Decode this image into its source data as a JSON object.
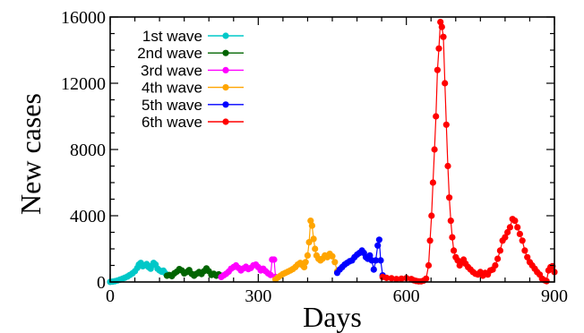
{
  "chart_data": {
    "type": "line",
    "title": "",
    "xlabel": "Days",
    "ylabel": "New cases",
    "xlim": [
      0,
      900
    ],
    "ylim": [
      0,
      16000
    ],
    "xticks": [
      "0",
      "300",
      "600",
      "900"
    ],
    "yticks": [
      "0",
      "4000",
      "8000",
      "12000",
      "16000"
    ],
    "grid": false,
    "legend": "top-left",
    "series": [
      {
        "name": "1st wave",
        "color": "#00c8c8",
        "points": [
          [
            0,
            5
          ],
          [
            5,
            20
          ],
          [
            10,
            50
          ],
          [
            15,
            90
          ],
          [
            20,
            140
          ],
          [
            25,
            200
          ],
          [
            30,
            260
          ],
          [
            35,
            330
          ],
          [
            40,
            420
          ],
          [
            45,
            520
          ],
          [
            50,
            650
          ],
          [
            55,
            850
          ],
          [
            58,
            1050
          ],
          [
            62,
            1150
          ],
          [
            66,
            950
          ],
          [
            70,
            1000
          ],
          [
            74,
            1080
          ],
          [
            78,
            900
          ],
          [
            82,
            800
          ],
          [
            85,
            1000
          ],
          [
            88,
            1150
          ],
          [
            92,
            1050
          ],
          [
            96,
            800
          ],
          [
            100,
            700
          ],
          [
            104,
            620
          ],
          [
            108,
            680
          ],
          [
            112,
            520
          ]
        ]
      },
      {
        "name": "2nd wave",
        "color": "#006400",
        "points": [
          [
            115,
            380
          ],
          [
            120,
            420
          ],
          [
            125,
            350
          ],
          [
            130,
            520
          ],
          [
            135,
            620
          ],
          [
            140,
            780
          ],
          [
            145,
            700
          ],
          [
            150,
            520
          ],
          [
            155,
            600
          ],
          [
            160,
            720
          ],
          [
            165,
            500
          ],
          [
            170,
            380
          ],
          [
            175,
            500
          ],
          [
            180,
            600
          ],
          [
            185,
            480
          ],
          [
            190,
            650
          ],
          [
            195,
            820
          ],
          [
            200,
            650
          ],
          [
            205,
            420
          ],
          [
            210,
            500
          ],
          [
            215,
            380
          ],
          [
            220,
            460
          ],
          [
            225,
            380
          ]
        ]
      },
      {
        "name": "3rd wave",
        "color": "#ff00ff",
        "points": [
          [
            225,
            300
          ],
          [
            230,
            400
          ],
          [
            235,
            500
          ],
          [
            240,
            620
          ],
          [
            245,
            800
          ],
          [
            250,
            900
          ],
          [
            255,
            1000
          ],
          [
            260,
            850
          ],
          [
            265,
            700
          ],
          [
            270,
            820
          ],
          [
            275,
            920
          ],
          [
            280,
            780
          ],
          [
            285,
            850
          ],
          [
            290,
            1000
          ],
          [
            295,
            1050
          ],
          [
            300,
            900
          ],
          [
            305,
            700
          ],
          [
            310,
            800
          ],
          [
            315,
            650
          ],
          [
            320,
            520
          ],
          [
            325,
            420
          ],
          [
            328,
            1350
          ],
          [
            332,
            1350
          ],
          [
            335,
            300
          ]
        ]
      },
      {
        "name": "4th wave",
        "color": "#ffa500",
        "points": [
          [
            335,
            150
          ],
          [
            340,
            280
          ],
          [
            345,
            380
          ],
          [
            350,
            480
          ],
          [
            355,
            550
          ],
          [
            360,
            620
          ],
          [
            365,
            700
          ],
          [
            370,
            780
          ],
          [
            375,
            900
          ],
          [
            380,
            1050
          ],
          [
            385,
            1150
          ],
          [
            390,
            1000
          ],
          [
            393,
            900
          ],
          [
            396,
            1200
          ],
          [
            400,
            1600
          ],
          [
            403,
            2400
          ],
          [
            406,
            3700
          ],
          [
            409,
            3400
          ],
          [
            412,
            2600
          ],
          [
            415,
            2000
          ],
          [
            418,
            1600
          ],
          [
            422,
            1400
          ],
          [
            426,
            1300
          ],
          [
            430,
            1400
          ],
          [
            435,
            1600
          ],
          [
            440,
            1500
          ],
          [
            445,
            1700
          ],
          [
            450,
            1550
          ],
          [
            455,
            1200
          ],
          [
            460,
            650
          ]
        ]
      },
      {
        "name": "5th wave",
        "color": "#0000ff",
        "points": [
          [
            460,
            550
          ],
          [
            465,
            750
          ],
          [
            470,
            900
          ],
          [
            475,
            1050
          ],
          [
            480,
            1150
          ],
          [
            485,
            1250
          ],
          [
            490,
            1300
          ],
          [
            495,
            1500
          ],
          [
            500,
            1650
          ],
          [
            505,
            1750
          ],
          [
            510,
            1900
          ],
          [
            514,
            1750
          ],
          [
            518,
            1500
          ],
          [
            522,
            1400
          ],
          [
            526,
            1600
          ],
          [
            530,
            1300
          ],
          [
            534,
            750
          ],
          [
            538,
            1300
          ],
          [
            542,
            2200
          ],
          [
            545,
            2550
          ],
          [
            548,
            1300
          ],
          [
            552,
            400
          ]
        ]
      },
      {
        "name": "6th wave",
        "color": "#ff0000",
        "points": [
          [
            552,
            300
          ],
          [
            560,
            250
          ],
          [
            570,
            220
          ],
          [
            580,
            180
          ],
          [
            590,
            200
          ],
          [
            600,
            230
          ],
          [
            610,
            180
          ],
          [
            615,
            100
          ],
          [
            620,
            60
          ],
          [
            625,
            40
          ],
          [
            630,
            40
          ],
          [
            635,
            80
          ],
          [
            640,
            200
          ],
          [
            645,
            1000
          ],
          [
            648,
            2500
          ],
          [
            651,
            4000
          ],
          [
            654,
            6000
          ],
          [
            657,
            8000
          ],
          [
            660,
            10000
          ],
          [
            663,
            12800
          ],
          [
            666,
            14100
          ],
          [
            669,
            15700
          ],
          [
            672,
            15400
          ],
          [
            675,
            14800
          ],
          [
            678,
            12000
          ],
          [
            681,
            9500
          ],
          [
            684,
            7000
          ],
          [
            687,
            5100
          ],
          [
            690,
            3700
          ],
          [
            693,
            2700
          ],
          [
            696,
            1900
          ],
          [
            700,
            1500
          ],
          [
            704,
            1300
          ],
          [
            708,
            1000
          ],
          [
            712,
            1200
          ],
          [
            716,
            1350
          ],
          [
            720,
            1100
          ],
          [
            725,
            900
          ],
          [
            730,
            750
          ],
          [
            735,
            600
          ],
          [
            740,
            500
          ],
          [
            745,
            450
          ],
          [
            750,
            600
          ],
          [
            755,
            380
          ],
          [
            760,
            550
          ],
          [
            765,
            450
          ],
          [
            770,
            700
          ],
          [
            775,
            750
          ],
          [
            780,
            1000
          ],
          [
            785,
            1400
          ],
          [
            790,
            1900
          ],
          [
            795,
            2500
          ],
          [
            800,
            2700
          ],
          [
            805,
            3000
          ],
          [
            810,
            3300
          ],
          [
            815,
            3800
          ],
          [
            820,
            3700
          ],
          [
            825,
            3300
          ],
          [
            830,
            2900
          ],
          [
            835,
            2500
          ],
          [
            840,
            1900
          ],
          [
            845,
            1500
          ],
          [
            850,
            1200
          ],
          [
            855,
            1000
          ],
          [
            860,
            800
          ],
          [
            865,
            600
          ],
          [
            870,
            450
          ],
          [
            875,
            200
          ],
          [
            880,
            100
          ],
          [
            884,
            50
          ],
          [
            888,
            700
          ],
          [
            892,
            900
          ],
          [
            896,
            950
          ],
          [
            900,
            600
          ]
        ]
      }
    ]
  }
}
